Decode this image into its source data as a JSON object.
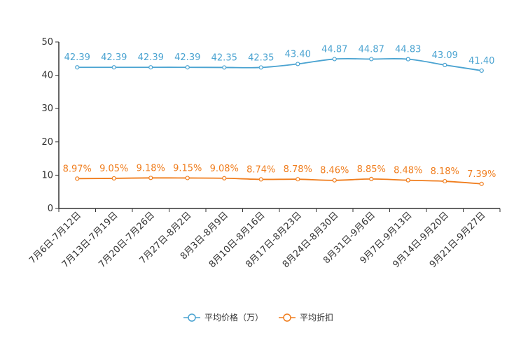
{
  "chart_data": {
    "type": "line",
    "title": "",
    "xlabel": "",
    "ylabel": "",
    "ylim": [
      0,
      50
    ],
    "yticks": [
      0,
      10,
      20,
      30,
      40,
      50
    ],
    "grid": false,
    "legend_position": "bottom-center",
    "categories": [
      "7月6日-7月12日",
      "7月13日-7月19日",
      "7月20日-7月26日",
      "7月27日-8月2日",
      "8月3日-8月9日",
      "8月10日-8月16日",
      "8月17日-8月23日",
      "8月24日-8月30日",
      "8月31日-9月6日",
      "9月7日-9月13日",
      "9月14日-9月20日",
      "9月21日-9月27日"
    ],
    "series": [
      {
        "name": "平均价格（万）",
        "color": "#4aa3d1",
        "values": [
          42.39,
          42.39,
          42.39,
          42.39,
          42.35,
          42.35,
          43.4,
          44.87,
          44.87,
          44.83,
          43.09,
          41.4
        ],
        "labels": [
          "42.39",
          "42.39",
          "42.39",
          "42.39",
          "42.35",
          "42.35",
          "43.40",
          "44.87",
          "44.87",
          "44.83",
          "43.09",
          "41.40"
        ]
      },
      {
        "name": "平均折扣",
        "color": "#f07d1d",
        "values": [
          8.97,
          9.05,
          9.18,
          9.15,
          9.08,
          8.74,
          8.78,
          8.46,
          8.85,
          8.48,
          8.18,
          7.39
        ],
        "labels": [
          "8.97%",
          "9.05%",
          "9.18%",
          "9.15%",
          "9.08%",
          "8.74%",
          "8.78%",
          "8.46%",
          "8.85%",
          "8.48%",
          "8.18%",
          "7.39%"
        ]
      }
    ]
  }
}
